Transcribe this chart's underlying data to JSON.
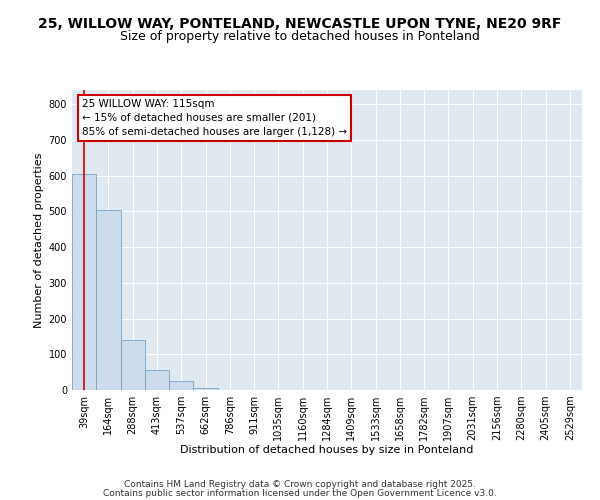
{
  "title_line1": "25, WILLOW WAY, PONTELAND, NEWCASTLE UPON TYNE, NE20 9RF",
  "title_line2": "Size of property relative to detached houses in Ponteland",
  "xlabel": "Distribution of detached houses by size in Ponteland",
  "ylabel": "Number of detached properties",
  "footer_line1": "Contains HM Land Registry data © Crown copyright and database right 2025.",
  "footer_line2": "Contains public sector information licensed under the Open Government Licence v3.0.",
  "bin_labels": [
    "39sqm",
    "164sqm",
    "288sqm",
    "413sqm",
    "537sqm",
    "662sqm",
    "786sqm",
    "911sqm",
    "1035sqm",
    "1160sqm",
    "1284sqm",
    "1409sqm",
    "1533sqm",
    "1658sqm",
    "1782sqm",
    "1907sqm",
    "2031sqm",
    "2156sqm",
    "2280sqm",
    "2405sqm",
    "2529sqm"
  ],
  "bar_heights": [
    605,
    505,
    140,
    57,
    25,
    5,
    0,
    0,
    0,
    0,
    0,
    0,
    0,
    0,
    0,
    0,
    0,
    0,
    0,
    0,
    0
  ],
  "bar_color": "#ccdcec",
  "bar_edgecolor": "#6699bb",
  "background_color": "#e0e8f0",
  "grid_color": "#ffffff",
  "annotation_text": "25 WILLOW WAY: 115sqm\n← 15% of detached houses are smaller (201)\n85% of semi-detached houses are larger (1,128) →",
  "annotation_box_facecolor": "#ffffff",
  "annotation_box_edgecolor": "#cc0000",
  "vline_color": "#cc0000",
  "vline_x": 0.5,
  "ylim": [
    0,
    840
  ],
  "yticks": [
    0,
    100,
    200,
    300,
    400,
    500,
    600,
    700,
    800
  ],
  "title_fontsize": 10,
  "subtitle_fontsize": 9,
  "axis_label_fontsize": 8,
  "tick_fontsize": 7,
  "footer_fontsize": 6.5,
  "annotation_fontsize": 7.5
}
